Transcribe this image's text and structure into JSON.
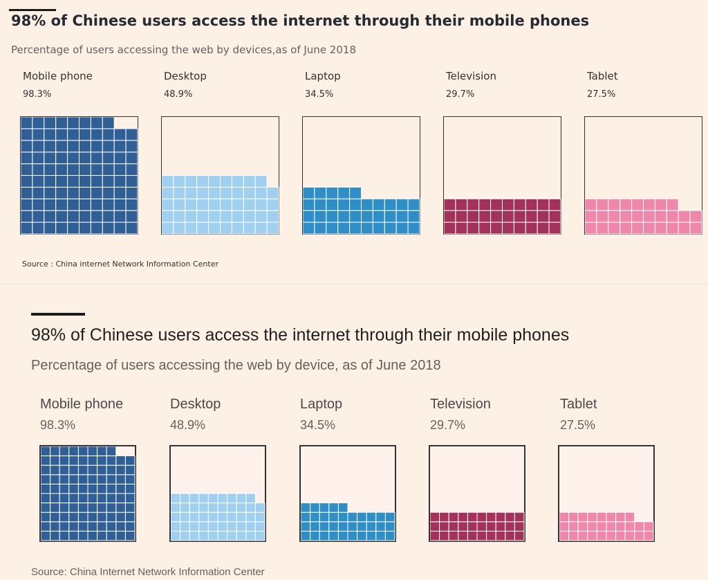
{
  "colors": {
    "background": "#fdf1e5",
    "mobile": "#2f5f94",
    "desktop": "#9fd0f0",
    "laptop": "#2f8ec5",
    "television": "#a3325a",
    "tablet": "#ef87ab",
    "grid": "#ffffff"
  },
  "panels": [
    {
      "title": "98% of Chinese users access the internet through their mobile phones",
      "subtitle": "Percentage of users accessing the web by devices,as of June 2018",
      "source": "Source : China internet Network Information Center"
    },
    {
      "title": "98% of Chinese users access the internet through their mobile phones",
      "subtitle": "Percentage of users accessing the web by device, as of June 2018",
      "source": "Source: China Internet Network Information Center"
    }
  ],
  "chart_data": [
    {
      "type": "waffle",
      "title": "98% of Chinese users access the internet through their mobile phones",
      "subtitle": "Percentage of users accessing the web by devices,as of June 2018",
      "grid": [
        10,
        10
      ],
      "categories": [
        "Mobile phone",
        "Desktop",
        "Laptop",
        "Television",
        "Tablet"
      ],
      "value_labels": [
        "98.3%",
        "48.9%",
        "34.5%",
        "29.7%",
        "27.5%"
      ],
      "values": [
        98.3,
        48.9,
        34.5,
        29.7,
        27.5
      ]
    },
    {
      "type": "waffle",
      "title": "98% of Chinese users access the internet through their mobile phones",
      "subtitle": "Percentage of users accessing the web by device, as of June 2018",
      "grid": [
        10,
        10
      ],
      "categories": [
        "Mobile phone",
        "Desktop",
        "Laptop",
        "Television",
        "Tablet"
      ],
      "value_labels": [
        "98.3%",
        "48.9%",
        "34.5%",
        "29.7%",
        "27.5%"
      ],
      "values": [
        98.3,
        48.9,
        34.5,
        29.7,
        27.5
      ]
    }
  ]
}
